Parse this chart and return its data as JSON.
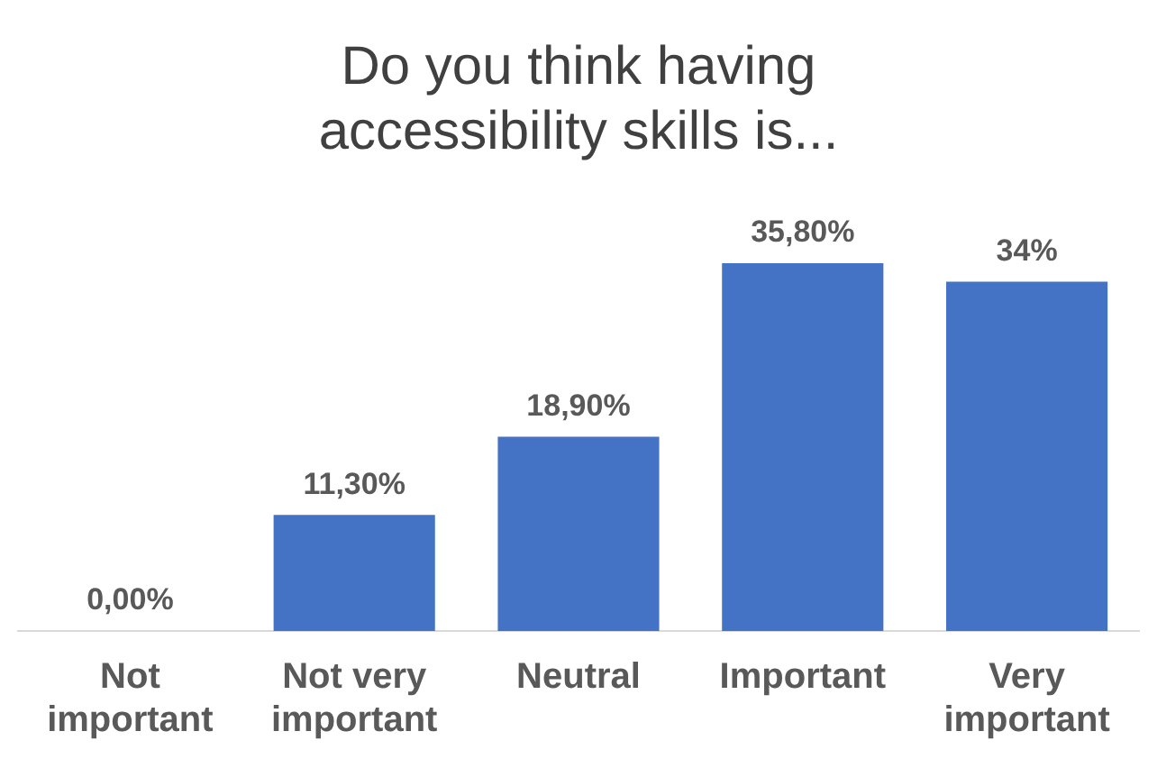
{
  "chart_data": {
    "type": "bar",
    "title": "Do you think having accessibility skills is...",
    "categories": [
      "Not important",
      "Not very important",
      "Neutral",
      "Important",
      "Very important"
    ],
    "values": [
      0,
      11.3,
      18.9,
      35.8,
      34
    ],
    "value_labels": [
      "0,00%",
      "11,30%",
      "18,90%",
      "35,80%",
      "34%"
    ],
    "color": "#4472c4",
    "grid": false,
    "legend": false
  }
}
